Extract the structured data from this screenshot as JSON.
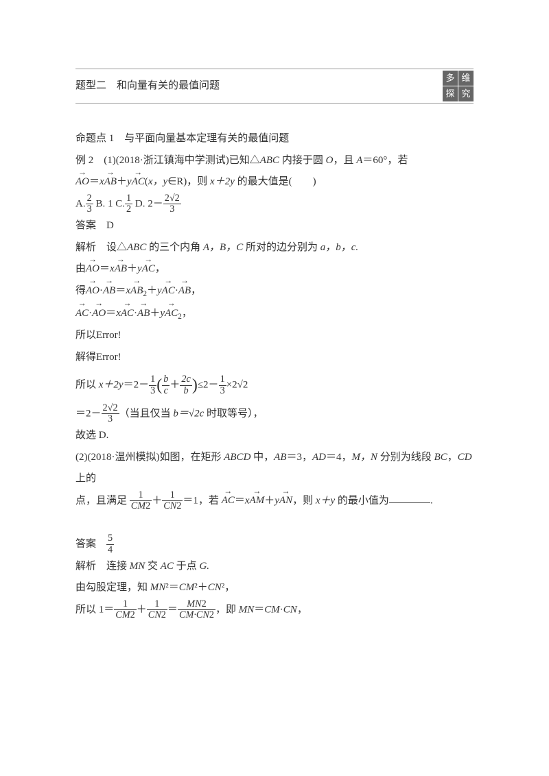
{
  "title": "题型二　和向量有关的最值问题",
  "badge": [
    "多",
    "维",
    "探",
    "究"
  ],
  "p1": "命题点 1　与平面向量基本定理有关的最值问题",
  "p2a": "例 2　(1)(2018·浙江镇海中学测试)已知△",
  "p2b": " 内接于圆 ",
  "p2c": "，且 ",
  "p2d": "＝60°，若",
  "abc": "ABC",
  "O": "O",
  "A": "A",
  "p3a": "(",
  "p3b": "∈R)，则 ",
  "p3c": " 的最大值是(　　)",
  "xy": "x，y",
  "x2y": "x＋2y",
  "optA": "A.",
  "optB": "B. 1",
  "optC": "C.",
  "optD": "D. 2－",
  "f23n": "2",
  "f23d": "3",
  "f12n": "1",
  "f12d": "2",
  "f2r2n": "2√2",
  "f2r2d": "3",
  "ans1": "答案　D",
  "sol1a": "解析　设△",
  "sol1b": " 的三个内角 ",
  "sol1c": " 所对的边分别为 ",
  "angles": "A，B，C",
  "sides": "a，b，c.",
  "you": "由",
  "de": "得",
  "comma": "，",
  "dot": "·",
  "eq": "＝",
  "plus": "＋",
  "x": "x",
  "y": "y",
  "AO": "AO",
  "AB": "AB",
  "AC": "AC",
  "sq2": "2",
  "err1": "所以Error!",
  "err2": "解得Error!",
  "p_so": "所以 ",
  "s1a": "＝2－",
  "s1b": "≤2－",
  "s1c": "×2",
  "f13n": "1",
  "f13d": "3",
  "inner_bc": "b",
  "inner_c": "c",
  "inner_2c": "2c",
  "inner_b": "b",
  "sqrt2": "√2",
  "s2a": "＝2－",
  "s2b": "（当且仅当 ",
  "s2c": " 时取等号），",
  "bcrel": "b＝√2c",
  "gxd": "故选 D.",
  "q2a": "(2)(2018·温州模拟)如图，在矩形 ",
  "q2b": " 中，",
  "q2c": "＝3，",
  "q2d": "＝4，",
  "q2e": " 分别为线段 ",
  "q2f": " 上的",
  "ABCD": "ABCD",
  "ABv": "AB",
  "ADv": "AD",
  "MN": "M，N",
  "BC": "BC",
  "CD": "CD",
  "q3a": "点，且满足",
  "q3b": "＝1，若",
  "q3c": "，则 ",
  "q3d": " 的最小值为",
  "xyv": "x＋y",
  "CM2": "CM",
  "CN2": "CN",
  "one": "1",
  "two": "2",
  "AM": "AM",
  "AN": "AN",
  "ans2": "答案　",
  "f54n": "5",
  "f54d": "4",
  "sol2": "解析　连接 ",
  "sol2b": " 交 ",
  "sol2c": " 于点 ",
  "MNv": "MN",
  "ACv": "AC",
  "G": "G.",
  "pyth": "由勾股定理，知 ",
  "MN2": "MN",
  "CMv": "CM",
  "CNv": "CN",
  "pyth2": "²＝",
  "pyth3": "²＋",
  "pyth4": "²，",
  "last_a": "所以 1＝",
  "last_b": "＝",
  "last_c": "，即 ",
  "last_d": "＝",
  "last_e": "·",
  "MNtop": "MN",
  "CMCNtop": "CM·CN"
}
